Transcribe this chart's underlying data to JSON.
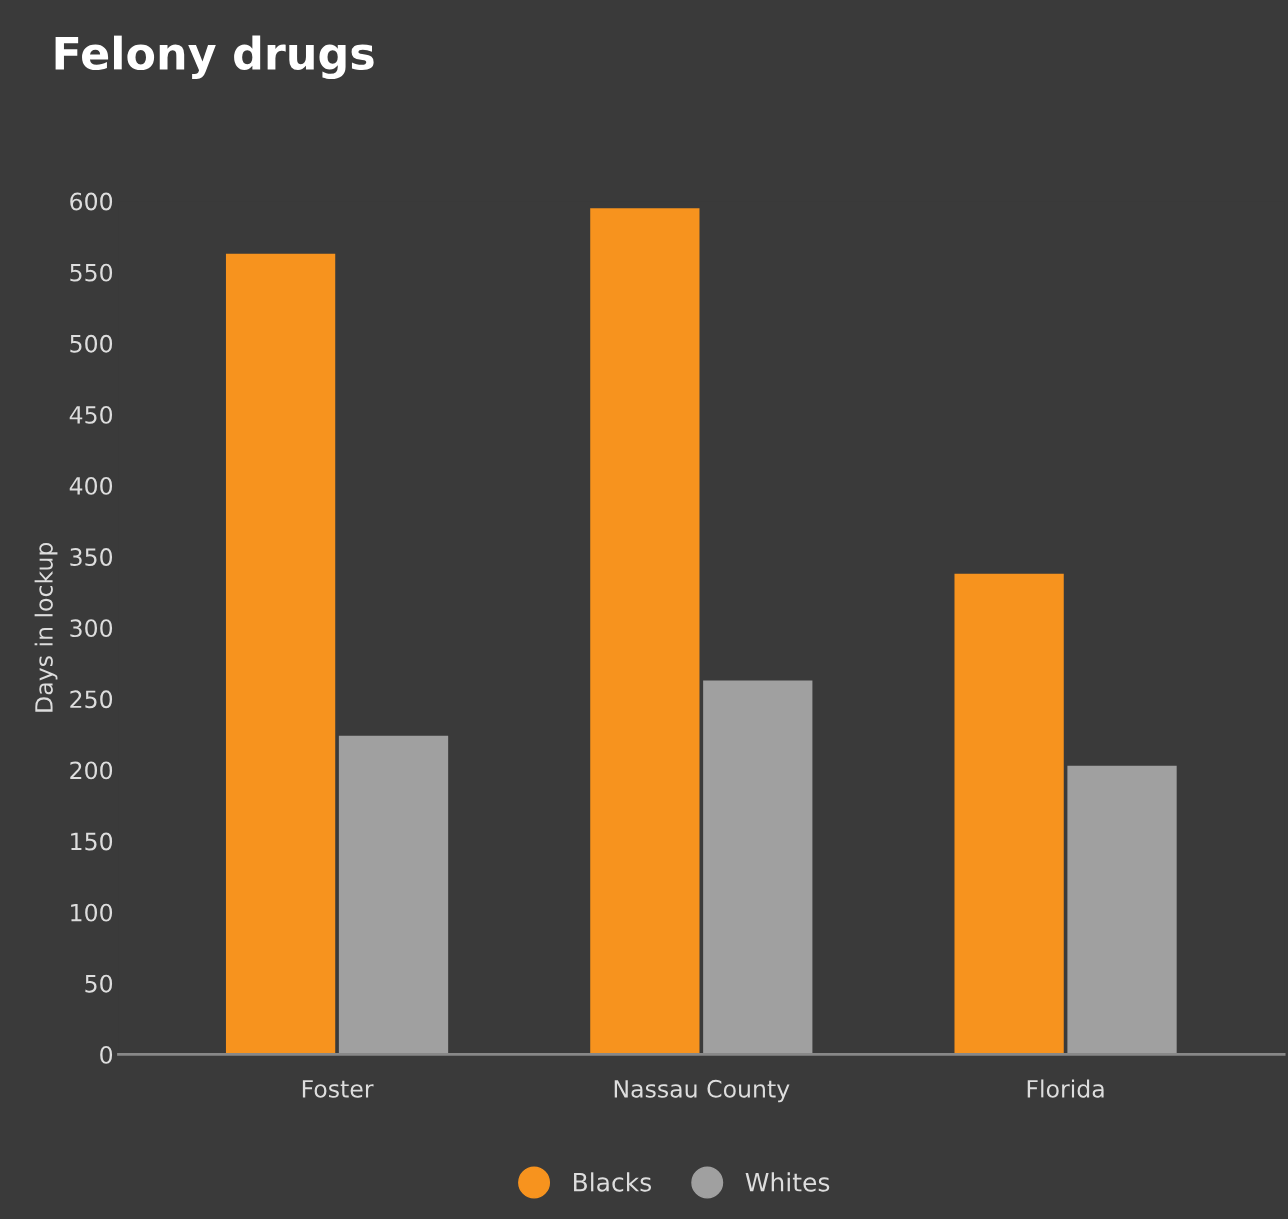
{
  "chart_data": {
    "type": "bar",
    "title": "Felony drugs",
    "ylabel": "Days in lockup",
    "categories": [
      "Foster",
      "Nassau County",
      "Florida"
    ],
    "series": [
      {
        "name": "Blacks",
        "color": "#f7931e",
        "values": [
          563,
          595,
          338
        ]
      },
      {
        "name": "Whites",
        "color": "#a0a0a0",
        "values": [
          224,
          263,
          203
        ]
      }
    ],
    "ylim": [
      0,
      600
    ],
    "yticks": [
      0,
      50,
      100,
      150,
      200,
      250,
      300,
      350,
      400,
      450,
      500,
      550,
      600
    ],
    "grid": false,
    "legend": "bottom"
  }
}
